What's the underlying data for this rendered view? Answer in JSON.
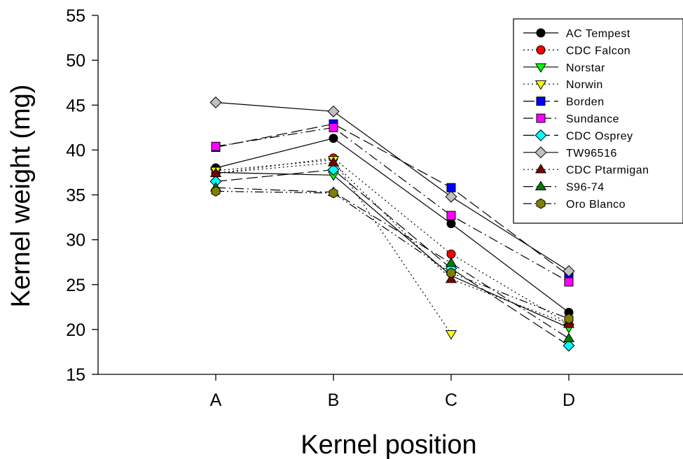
{
  "chart_data": {
    "type": "line",
    "xlabel": "Kernel position",
    "ylabel": "Kernel weight (mg)",
    "categories": [
      "A",
      "B",
      "C",
      "D"
    ],
    "ylim": [
      15,
      55
    ],
    "yticks": [
      15,
      20,
      25,
      30,
      35,
      40,
      45,
      50,
      55
    ],
    "grid": false,
    "legend_position": "top-right",
    "series": [
      {
        "name": "AC Tempest",
        "values": [
          38.0,
          41.3,
          31.8,
          21.9
        ],
        "marker": "circle",
        "color": "#000000",
        "dash": "solid"
      },
      {
        "name": "CDC Falcon",
        "values": [
          37.4,
          39.1,
          28.4,
          20.6
        ],
        "marker": "circle",
        "color": "#ff0000",
        "dash": "dotted"
      },
      {
        "name": "Norstar",
        "values": [
          37.5,
          37.2,
          26.0,
          20.2
        ],
        "marker": "triangle-down",
        "color": "#00ff00",
        "dash": "solid"
      },
      {
        "name": "Norwin",
        "values": [
          37.7,
          38.9,
          19.5,
          null
        ],
        "marker": "triangle-down",
        "color": "#ffff00",
        "dash": "dotted"
      },
      {
        "name": "Borden",
        "values": [
          40.3,
          42.9,
          35.8,
          26.0
        ],
        "marker": "square",
        "color": "#0000ff",
        "dash": "longdash"
      },
      {
        "name": "Sundance",
        "values": [
          40.4,
          42.5,
          32.7,
          25.3
        ],
        "marker": "square",
        "color": "#ff00ff",
        "dash": "dashdot"
      },
      {
        "name": "CDC Osprey",
        "values": [
          36.5,
          37.8,
          26.8,
          18.2
        ],
        "marker": "diamond",
        "color": "#00ffff",
        "dash": "longdash"
      },
      {
        "name": "TW96516",
        "values": [
          45.3,
          44.3,
          34.8,
          26.5
        ],
        "marker": "diamond",
        "color": "#c0c0c0",
        "dash": "solid"
      },
      {
        "name": "CDC Ptarmigan",
        "values": [
          37.4,
          38.6,
          25.6,
          20.6
        ],
        "marker": "triangle-up",
        "color": "#800000",
        "dash": "dotted"
      },
      {
        "name": "S96-74",
        "values": [
          35.8,
          35.3,
          27.4,
          19.0
        ],
        "marker": "triangle-up",
        "color": "#008000",
        "dash": "dashdot"
      },
      {
        "name": "Oro Blanco",
        "values": [
          35.4,
          35.2,
          26.3,
          21.2
        ],
        "marker": "hexagon",
        "color": "#808000",
        "dash": "dashdotdot"
      }
    ]
  }
}
